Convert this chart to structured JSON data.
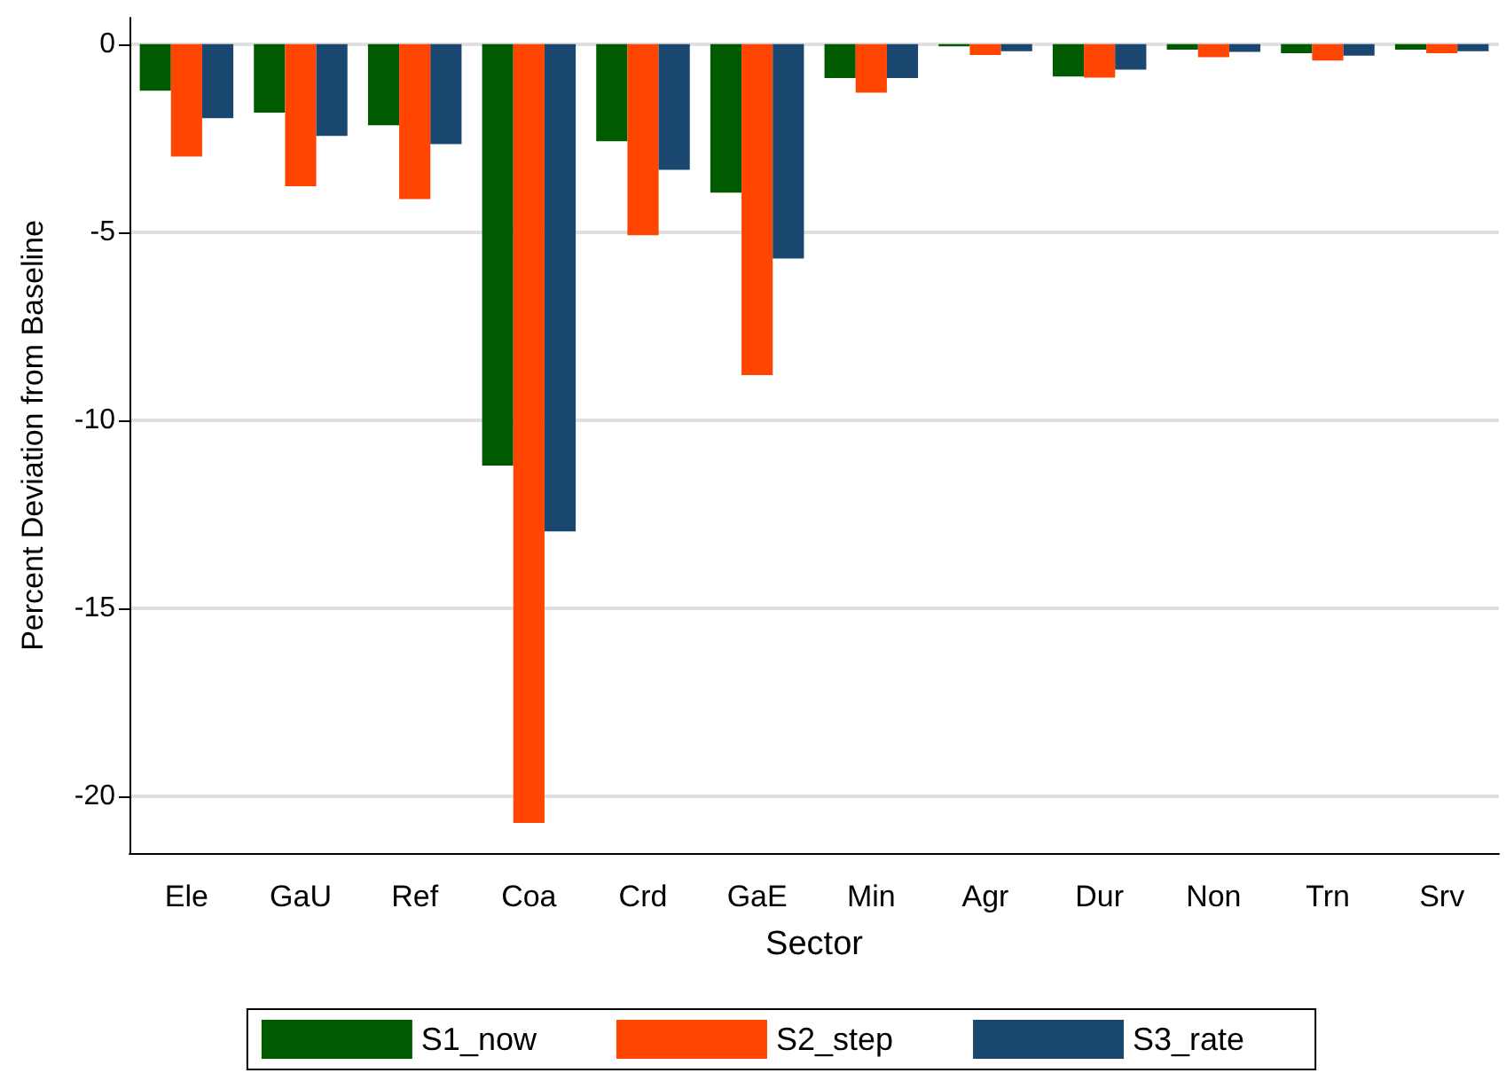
{
  "chart_data": {
    "type": "bar",
    "xlabel": "Sector",
    "ylabel": "Percent Deviation from Baseline",
    "categories": [
      "Ele",
      "GaU",
      "Ref",
      "Coa",
      "Crd",
      "GaE",
      "Min",
      "Agr",
      "Dur",
      "Non",
      "Trn",
      "Srv"
    ],
    "series": [
      {
        "name": "S1_now",
        "color": "#005a00",
        "values": [
          -1.24,
          -1.82,
          -2.16,
          -11.2,
          -2.58,
          -3.95,
          -0.9,
          -0.06,
          -0.86,
          -0.15,
          -0.24,
          -0.15
        ]
      },
      {
        "name": "S2_step",
        "color": "#ff4500",
        "values": [
          -2.99,
          -3.78,
          -4.12,
          -20.7,
          -5.08,
          -8.8,
          -1.29,
          -0.29,
          -0.89,
          -0.35,
          -0.44,
          -0.24
        ]
      },
      {
        "name": "S3_rate",
        "color": "#1a476f",
        "values": [
          -1.97,
          -2.44,
          -2.66,
          -12.95,
          -3.34,
          -5.7,
          -0.9,
          -0.19,
          -0.68,
          -0.21,
          -0.31,
          -0.19
        ]
      }
    ],
    "ylim": [
      -21.5,
      0.7
    ],
    "yticks": [
      -20,
      -15,
      -10,
      -5,
      0
    ],
    "grid": "y",
    "legend": "bottom"
  }
}
